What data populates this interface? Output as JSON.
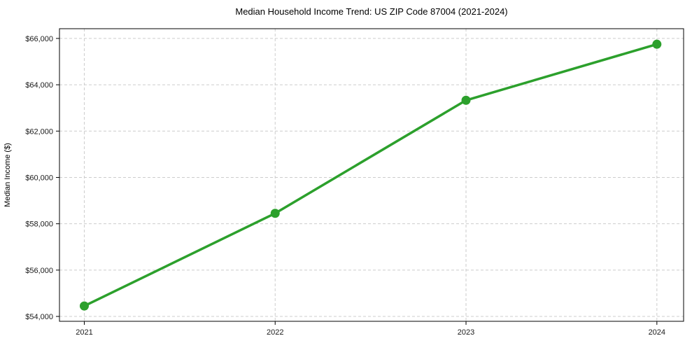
{
  "chart_data": {
    "type": "line",
    "title": "Median Household Income Trend: US ZIP Code 87004 (2021-2024)",
    "xlabel": "",
    "ylabel": "Median Income ($)",
    "x": [
      2021,
      2022,
      2023,
      2024
    ],
    "series": [
      {
        "name": "Median Household Income",
        "values": [
          54450,
          58450,
          63330,
          65750
        ]
      }
    ],
    "xticks": [
      2021,
      2022,
      2023,
      2024
    ],
    "xtick_labels": [
      "2021",
      "2022",
      "2023",
      "2024"
    ],
    "yticks": [
      54000,
      56000,
      58000,
      60000,
      62000,
      64000,
      66000
    ],
    "ytick_labels": [
      "$54,000",
      "$56,000",
      "$58,000",
      "$60,000",
      "$62,000",
      "$64,000",
      "$66,000"
    ],
    "xlim": [
      2020.87,
      2024.14
    ],
    "ylim": [
      53790,
      66420
    ],
    "grid": true,
    "legend": "none",
    "line_color": "#2ca02c",
    "marker_color": "#2ca02c",
    "grid_color": "#cccccc",
    "spine_color": "#000000",
    "tick_label_color": "#1a1a1a",
    "background_color": "#ffffff"
  }
}
